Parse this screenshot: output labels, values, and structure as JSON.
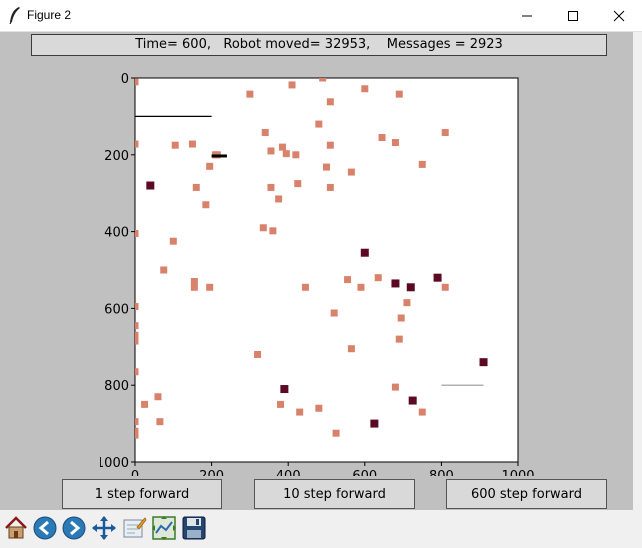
{
  "window": {
    "title": "Figure 2"
  },
  "status": {
    "text": "Time= 600,   Robot moved= 32953,    Messages = 2923"
  },
  "chart_data": {
    "type": "scatter",
    "xlim": [
      0,
      1000
    ],
    "ylim": [
      1000,
      0
    ],
    "x_ticks": [
      "0",
      "200",
      "400",
      "600",
      "800",
      "1000"
    ],
    "y_ticks": [
      "0",
      "200",
      "400",
      "600",
      "800",
      "1000"
    ],
    "colors": {
      "tile": "#d9826b",
      "robot": "#5c0a22",
      "line": "#000000",
      "line_gray": "#999999"
    },
    "tiles": [
      [
        0,
        10
      ],
      [
        300,
        42
      ],
      [
        410,
        18
      ],
      [
        490,
        0
      ],
      [
        510,
        62
      ],
      [
        600,
        28
      ],
      [
        690,
        42
      ],
      [
        480,
        120
      ],
      [
        340,
        142
      ],
      [
        385,
        180
      ],
      [
        355,
        190
      ],
      [
        395,
        197
      ],
      [
        420,
        200
      ],
      [
        210,
        200
      ],
      [
        150,
        172
      ],
      [
        105,
        175
      ],
      [
        215,
        200
      ],
      [
        195,
        230
      ],
      [
        510,
        175
      ],
      [
        645,
        155
      ],
      [
        680,
        168
      ],
      [
        810,
        142
      ],
      [
        0,
        172
      ],
      [
        750,
        225
      ],
      [
        500,
        232
      ],
      [
        565,
        245
      ],
      [
        425,
        275
      ],
      [
        355,
        285
      ],
      [
        510,
        285
      ],
      [
        160,
        285
      ],
      [
        375,
        315
      ],
      [
        185,
        330
      ],
      [
        335,
        390
      ],
      [
        360,
        398
      ],
      [
        0,
        405
      ],
      [
        100,
        425
      ],
      [
        75,
        500
      ],
      [
        155,
        530
      ],
      [
        155,
        545
      ],
      [
        195,
        545
      ],
      [
        555,
        525
      ],
      [
        445,
        545
      ],
      [
        635,
        520
      ],
      [
        590,
        545
      ],
      [
        810,
        545
      ],
      [
        710,
        585
      ],
      [
        0,
        595
      ],
      [
        520,
        612
      ],
      [
        695,
        625
      ],
      [
        0,
        645
      ],
      [
        0,
        670
      ],
      [
        0,
        685
      ],
      [
        690,
        680
      ],
      [
        565,
        705
      ],
      [
        320,
        720
      ],
      [
        0,
        765
      ],
      [
        680,
        805
      ],
      [
        380,
        850
      ],
      [
        60,
        830
      ],
      [
        25,
        850
      ],
      [
        430,
        870
      ],
      [
        480,
        860
      ],
      [
        750,
        870
      ],
      [
        0,
        895
      ],
      [
        65,
        895
      ],
      [
        0,
        920
      ],
      [
        0,
        930
      ],
      [
        525,
        925
      ]
    ],
    "robots": [
      [
        40,
        280
      ],
      [
        600,
        455
      ],
      [
        680,
        535
      ],
      [
        720,
        545
      ],
      [
        790,
        520
      ],
      [
        910,
        740
      ],
      [
        390,
        810
      ],
      [
        725,
        840
      ],
      [
        625,
        900
      ]
    ],
    "segments": [
      {
        "x1": 0,
        "y1": 100,
        "x2": 200,
        "y2": 100,
        "color": "line"
      },
      {
        "x1": 200,
        "y1": 203,
        "x2": 240,
        "y2": 203,
        "color": "line",
        "thick": true
      },
      {
        "x1": 800,
        "y1": 800,
        "x2": 910,
        "y2": 800,
        "color": "line_gray"
      }
    ]
  },
  "buttons": {
    "step1": "1 step forward",
    "step10": "10 step forward",
    "step600": "600 step forward"
  },
  "toolbar": {
    "items": [
      "home-icon",
      "back-arrow-icon",
      "forward-arrow-icon",
      "pan-icon",
      "zoom-icon",
      "subplots-icon",
      "save-icon"
    ]
  }
}
